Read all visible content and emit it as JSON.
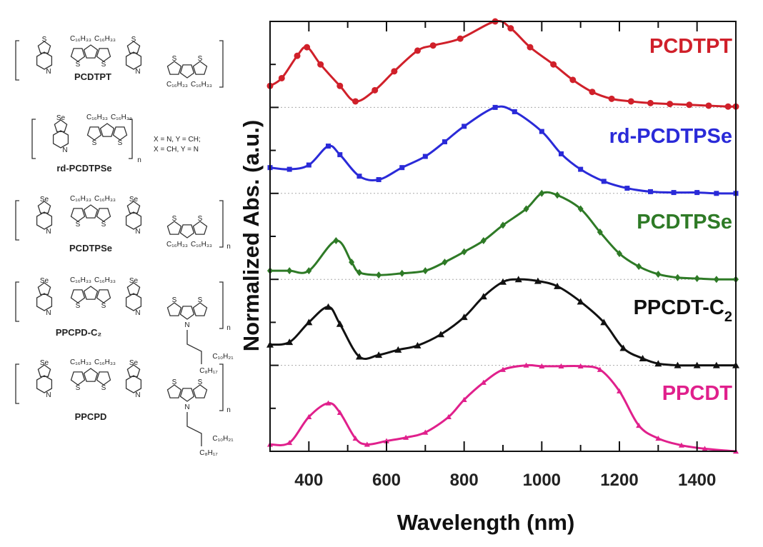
{
  "structures": [
    {
      "name": "PCDTPT",
      "heteroatom": "S",
      "chain": "C₁₆H₃₃",
      "bottom_unit": "cpdt",
      "note": []
    },
    {
      "name": "rd-PCDTPSe",
      "heteroatom": "Se",
      "chain": "C₁₆H₃₃",
      "bottom_unit": "none",
      "note": [
        "X = N, Y = CH;",
        "X = CH, Y = N"
      ],
      "subscript": "n"
    },
    {
      "name": "PCDTPSe",
      "heteroatom": "Se",
      "chain": "C₁₆H₃₃",
      "bottom_unit": "cpdt",
      "note": [],
      "subscript": "n"
    },
    {
      "name": "PPCPD-C₂",
      "heteroatom": "Se",
      "chain": "C₁₆H₃₃",
      "bottom_unit": "dtp-branched",
      "side_chains": [
        "C₁₀H₂₁",
        "C₈H₁₇"
      ],
      "note": [],
      "subscript": "n"
    },
    {
      "name": "PPCPD",
      "heteroatom": "Se",
      "chain": "C₁₆H₃₃",
      "bottom_unit": "dtp-linear",
      "side_chains": [
        "C₁₀H₂₁",
        "C₈H₁₇"
      ],
      "note": [],
      "subscript": "n"
    }
  ],
  "chart_data": {
    "type": "line",
    "title": "",
    "xlabel": "Wavelength (nm)",
    "ylabel": "Normalized Abs. (a.u.)",
    "xlim": [
      300,
      1500
    ],
    "ylim": [
      0,
      5
    ],
    "xticks": [
      400,
      600,
      800,
      1000,
      1200,
      1400
    ],
    "grid": false,
    "offset_note": "spectra stacked with offset 1 each, dashed baselines",
    "series": [
      {
        "name": "PCDTPT",
        "color": "#d0202a",
        "marker": "circle",
        "offset": 4,
        "x": [
          300,
          330,
          370,
          395,
          430,
          480,
          520,
          570,
          620,
          680,
          720,
          790,
          880,
          920,
          970,
          1030,
          1080,
          1130,
          1180,
          1230,
          1280,
          1330,
          1380,
          1430,
          1480,
          1500
        ],
        "y": [
          0.25,
          0.34,
          0.6,
          0.7,
          0.5,
          0.25,
          0.07,
          0.2,
          0.42,
          0.66,
          0.72,
          0.8,
          1.0,
          0.92,
          0.7,
          0.5,
          0.32,
          0.18,
          0.1,
          0.07,
          0.05,
          0.04,
          0.03,
          0.02,
          0.01,
          0.01
        ]
      },
      {
        "name": "rd-PCDTPSe",
        "color": "#2a2ad8",
        "marker": "square",
        "offset": 3,
        "x": [
          300,
          350,
          400,
          450,
          480,
          530,
          580,
          640,
          700,
          750,
          800,
          880,
          930,
          1000,
          1050,
          1100,
          1160,
          1220,
          1280,
          1340,
          1400,
          1450,
          1500
        ],
        "y": [
          0.3,
          0.28,
          0.33,
          0.55,
          0.45,
          0.2,
          0.16,
          0.3,
          0.43,
          0.6,
          0.78,
          1.0,
          0.95,
          0.72,
          0.46,
          0.28,
          0.14,
          0.06,
          0.02,
          0.01,
          0.01,
          0.0,
          0.0
        ]
      },
      {
        "name": "PCDTPSe",
        "color": "#2e7a26",
        "marker": "diamond",
        "offset": 2,
        "x": [
          300,
          350,
          400,
          470,
          510,
          530,
          580,
          640,
          700,
          750,
          800,
          850,
          900,
          960,
          1000,
          1040,
          1100,
          1150,
          1200,
          1250,
          1300,
          1350,
          1400,
          1450,
          1500
        ],
        "y": [
          0.1,
          0.1,
          0.1,
          0.45,
          0.2,
          0.08,
          0.05,
          0.07,
          0.1,
          0.2,
          0.32,
          0.45,
          0.63,
          0.82,
          1.0,
          0.98,
          0.82,
          0.55,
          0.3,
          0.15,
          0.06,
          0.02,
          0.01,
          0.0,
          0.0
        ]
      },
      {
        "name": "PPCDT-C",
        "sub": "2",
        "color": "#111111",
        "marker": "triangle",
        "offset": 1,
        "x": [
          300,
          350,
          400,
          450,
          480,
          530,
          580,
          630,
          680,
          740,
          800,
          850,
          900,
          940,
          990,
          1040,
          1100,
          1160,
          1210,
          1260,
          1300,
          1350,
          1400,
          1450,
          1500
        ],
        "y": [
          0.24,
          0.27,
          0.5,
          0.68,
          0.48,
          0.1,
          0.12,
          0.18,
          0.23,
          0.36,
          0.56,
          0.8,
          0.97,
          1.0,
          0.98,
          0.92,
          0.74,
          0.5,
          0.2,
          0.08,
          0.02,
          0.0,
          0.0,
          0.0,
          0.0
        ]
      },
      {
        "name": "PPCDT",
        "color": "#e0208c",
        "marker": "triangle-small",
        "offset": 0,
        "x": [
          300,
          350,
          400,
          450,
          480,
          520,
          550,
          600,
          650,
          700,
          760,
          800,
          850,
          900,
          960,
          1000,
          1050,
          1100,
          1150,
          1200,
          1250,
          1300,
          1360,
          1420,
          1500
        ],
        "y": [
          0.08,
          0.1,
          0.4,
          0.56,
          0.45,
          0.15,
          0.08,
          0.12,
          0.16,
          0.22,
          0.4,
          0.6,
          0.8,
          0.95,
          1.0,
          0.99,
          0.99,
          0.99,
          0.95,
          0.7,
          0.3,
          0.15,
          0.07,
          0.03,
          0.0
        ]
      }
    ]
  }
}
